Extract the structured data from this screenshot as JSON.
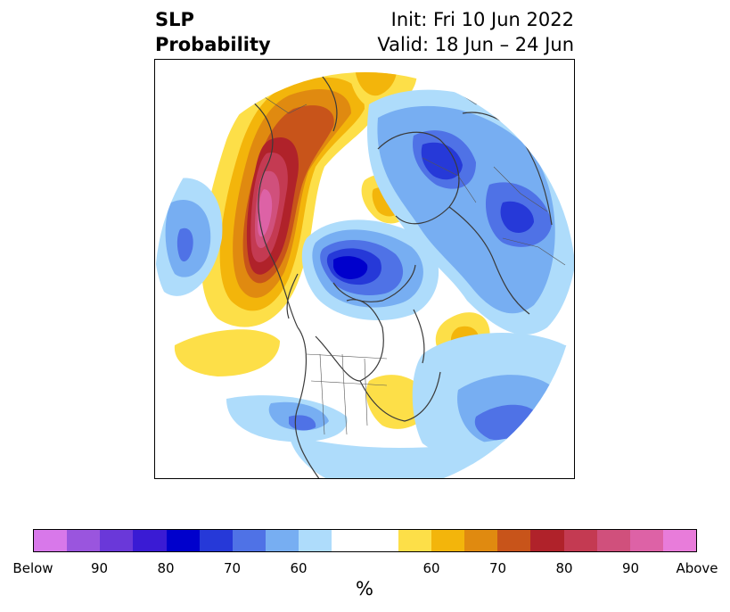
{
  "title": {
    "left_line1": "SLP",
    "left_line2": "Probability",
    "right_line1": "Init: Fri 10 Jun 2022",
    "right_line2": "Valid: 18 Jun – 24 Jun"
  },
  "colorbar": {
    "unit": "%",
    "colors": [
      "#d878ea",
      "#9a55de",
      "#6a38d9",
      "#3a1bd4",
      "#0000cc",
      "#2639d8",
      "#4f72e6",
      "#77aef2",
      "#aedcfb",
      "#ffffff",
      "#ffffff",
      "#fddf48",
      "#f3b50b",
      "#e08a10",
      "#c8541a",
      "#b0222a",
      "#c43a52",
      "#d0507c",
      "#dd62a6",
      "#e87cda"
    ],
    "labels": [
      "Below",
      "90",
      "80",
      "70",
      "60",
      "60",
      "70",
      "80",
      "90",
      "Above"
    ]
  }
}
